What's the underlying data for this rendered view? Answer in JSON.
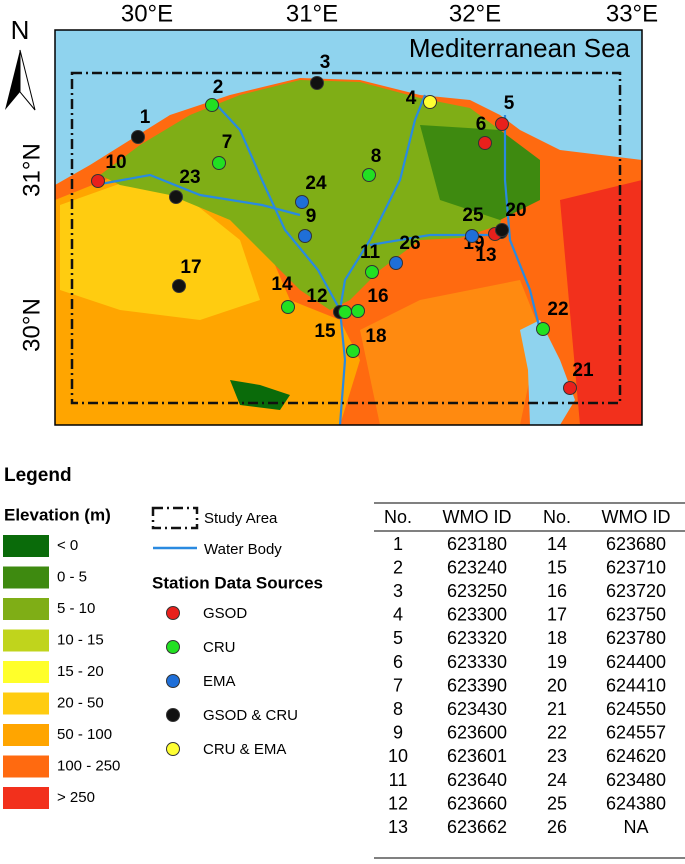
{
  "map": {
    "title": "Mediterranean Sea",
    "north": "N",
    "lon_labels": [
      "30°E",
      "31°E",
      "32°E",
      "33°E"
    ],
    "lat_labels": [
      "31°N",
      "30°N"
    ],
    "stations": [
      {
        "label": "1",
        "source": "GSOD & CRU"
      },
      {
        "label": "2",
        "source": "CRU"
      },
      {
        "label": "3",
        "source": "GSOD & CRU"
      },
      {
        "label": "4",
        "source": "CRU & EMA"
      },
      {
        "label": "5",
        "source": "GSOD"
      },
      {
        "label": "6",
        "source": "GSOD"
      },
      {
        "label": "7",
        "source": "CRU"
      },
      {
        "label": "8",
        "source": "CRU"
      },
      {
        "label": "9",
        "source": "EMA"
      },
      {
        "label": "10",
        "source": "GSOD"
      },
      {
        "label": "11",
        "source": "CRU"
      },
      {
        "label": "12",
        "source": "GSOD & CRU"
      },
      {
        "label": "13",
        "source": "GSOD & CRU"
      },
      {
        "label": "14",
        "source": "CRU"
      },
      {
        "label": "15",
        "source": "CRU"
      },
      {
        "label": "16",
        "source": "CRU"
      },
      {
        "label": "17",
        "source": "GSOD & CRU"
      },
      {
        "label": "18",
        "source": "CRU"
      },
      {
        "label": "19",
        "source": "GSOD"
      },
      {
        "label": "20",
        "source": "GSOD & CRU"
      },
      {
        "label": "21",
        "source": "GSOD"
      },
      {
        "label": "22",
        "source": "CRU"
      },
      {
        "label": "23",
        "source": "GSOD & CRU"
      },
      {
        "label": "24",
        "source": "EMA"
      },
      {
        "label": "25",
        "source": "EMA"
      },
      {
        "label": "26",
        "source": "EMA"
      }
    ]
  },
  "legend": {
    "title": "Legend",
    "elevation_title": "Elevation (m)",
    "elevation_classes": [
      {
        "label": "< 0",
        "color": "#0a6b0a"
      },
      {
        "label": "0 - 5",
        "color": "#3e8a10"
      },
      {
        "label": "5 - 10",
        "color": "#7fae16"
      },
      {
        "label": "10 - 15",
        "color": "#c0d41c"
      },
      {
        "label": "15 - 20",
        "color": "#ffff2a"
      },
      {
        "label": "20 - 50",
        "color": "#ffcc10"
      },
      {
        "label": "50 - 100",
        "color": "#ffa500"
      },
      {
        "label": "100 - 250",
        "color": "#ff6a10"
      },
      {
        "label": "> 250",
        "color": "#f2301c"
      }
    ],
    "study_area": "Study Area",
    "water_body": "Water Body",
    "sources_title": "Station Data Sources",
    "sources": [
      {
        "label": "GSOD",
        "color": "#e8201c"
      },
      {
        "label": "CRU",
        "color": "#22e022"
      },
      {
        "label": "EMA",
        "color": "#1f6fd8"
      },
      {
        "label": "GSOD & CRU",
        "color": "#111111"
      },
      {
        "label": "CRU & EMA",
        "color": "#ffff33"
      }
    ]
  },
  "table": {
    "header": [
      "No.",
      "WMO ID",
      "No.",
      "WMO ID"
    ],
    "rows": [
      [
        "1",
        "623180",
        "14",
        "623680"
      ],
      [
        "2",
        "623240",
        "15",
        "623710"
      ],
      [
        "3",
        "623250",
        "16",
        "623720"
      ],
      [
        "4",
        "623300",
        "17",
        "623750"
      ],
      [
        "5",
        "623320",
        "18",
        "623780"
      ],
      [
        "6",
        "623330",
        "19",
        "624400"
      ],
      [
        "7",
        "623390",
        "20",
        "624410"
      ],
      [
        "8",
        "623430",
        "21",
        "624550"
      ],
      [
        "9",
        "623600",
        "22",
        "624557"
      ],
      [
        "10",
        "623601",
        "23",
        "624620"
      ],
      [
        "11",
        "623640",
        "24",
        "623480"
      ],
      [
        "12",
        "623660",
        "25",
        "624380"
      ],
      [
        "13",
        "623662",
        "26",
        "NA"
      ]
    ]
  }
}
